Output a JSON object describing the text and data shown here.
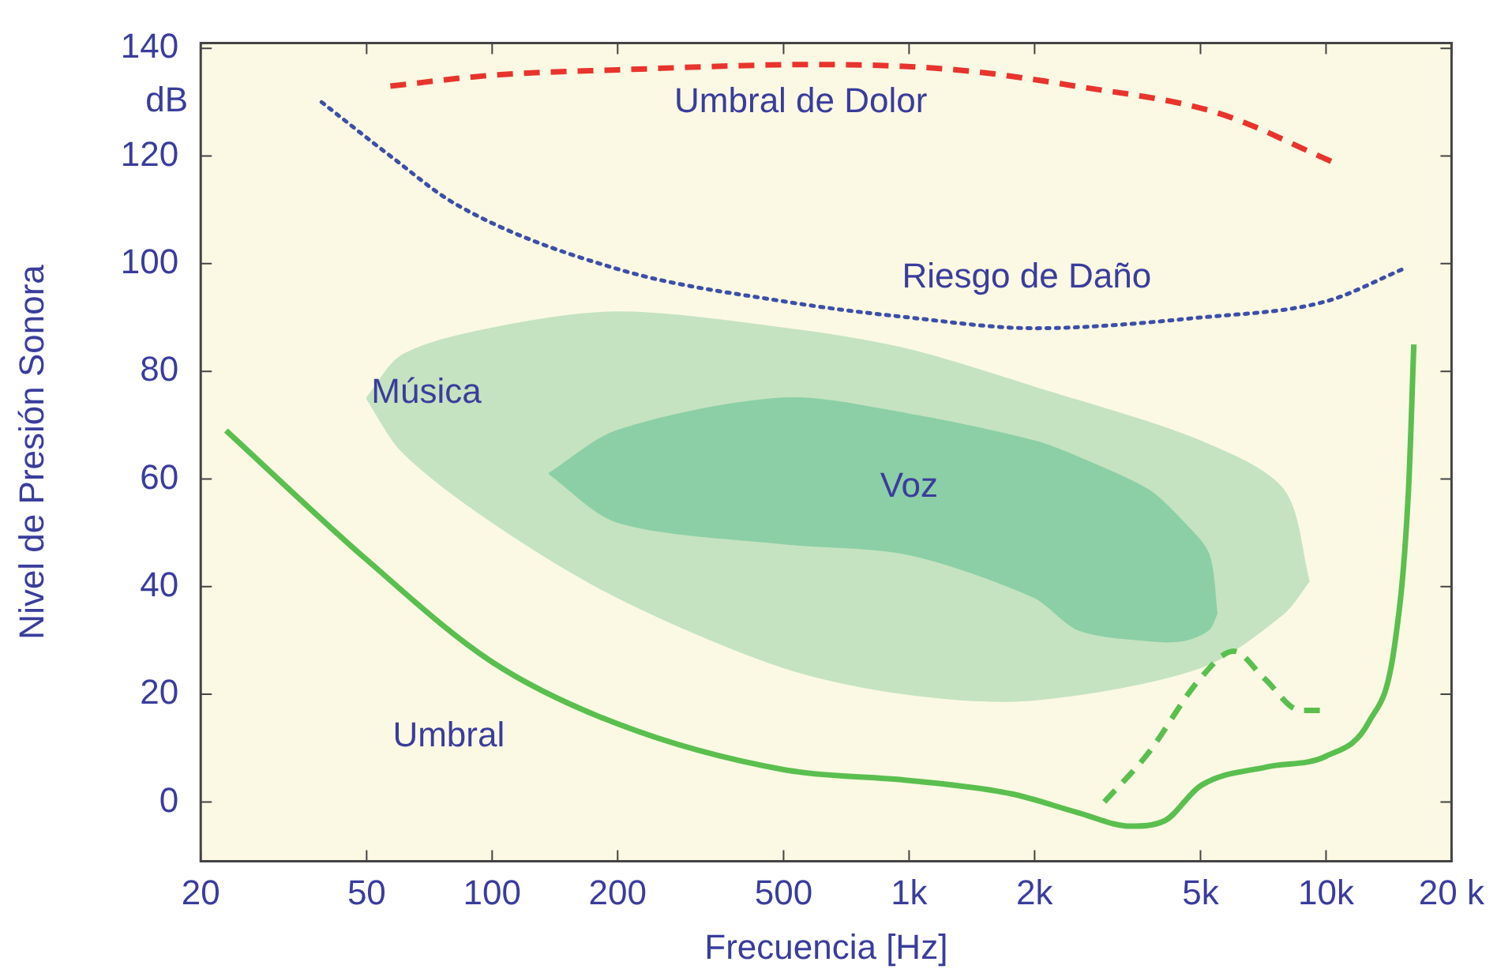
{
  "chart_data": {
    "type": "line",
    "xlabel": "Frecuencia [Hz]",
    "ylabel": "Nivel de Presión Sonora",
    "log": "x",
    "grid": false,
    "legend": false,
    "xlim": [
      20,
      20000
    ],
    "xticks": [
      20,
      50,
      100,
      200,
      500,
      {
        "value": 1000,
        "label": "1k"
      },
      {
        "value": 2000,
        "label": "2k"
      },
      {
        "value": 5000,
        "label": "5k"
      },
      {
        "value": 10000,
        "label": "10k"
      },
      {
        "value": 20000,
        "label": "20 k"
      }
    ],
    "ylim": [
      -11,
      141
    ],
    "yticks": [
      0,
      20,
      40,
      60,
      80,
      100,
      120,
      140
    ],
    "series": [
      {
        "color": "#c5e3c0",
        "x": [
          50,
          61,
          100,
          200,
          500,
          1000,
          2000,
          5000,
          7900,
          9100
        ],
        "values": [
          null,
          null,
          null,
          null,
          null,
          null,
          null,
          null,
          null,
          null
        ],
        "upper": [
          75,
          83,
          88,
          91,
          88,
          84,
          77,
          67,
          58,
          41
        ],
        "lower": [
          75,
          65,
          52,
          38,
          25,
          20,
          19,
          25,
          35,
          41
        ]
      },
      {
        "color": "#8ccfa6",
        "x": [
          137,
          200,
          500,
          1000,
          2000,
          2546,
          3740,
          4540,
          5230,
          5470
        ],
        "values": [
          null,
          null,
          null,
          null,
          null,
          null,
          null,
          null,
          null,
          null
        ],
        "upper": [
          61,
          69,
          75,
          72,
          67,
          64,
          58,
          52,
          46,
          35
        ],
        "lower": [
          61,
          52,
          48,
          46,
          38,
          32,
          30,
          30,
          32,
          35
        ]
      },
      {
        "name": "Umbral de Dolor",
        "color": "#e8342c",
        "line_style": "dashed",
        "x": [
          57,
          100,
          200,
          600,
          1300,
          2500,
          5500,
          10300
        ],
        "values": [
          133,
          135,
          136,
          137,
          136,
          133,
          128,
          119
        ]
      },
      {
        "name": "Riesgo de Daño",
        "color": "#3c4fa8",
        "line_style": "dotted",
        "x": [
          39,
          57,
          82,
          200,
          500,
          1000,
          2000,
          5000,
          10000,
          15300
        ],
        "values": [
          130,
          120,
          111,
          99,
          93,
          90,
          88,
          90,
          93,
          99
        ]
      },
      {
        "name": "Umbral",
        "color": "#5abf4f",
        "line_style": "solid",
        "x": [
          23,
          50,
          100,
          200,
          500,
          1000,
          1765,
          2546,
          3400,
          4100,
          5000,
          7200,
          10000,
          12700,
          14600,
          15770,
          16240
        ],
        "values": [
          69,
          45,
          26,
          14.5,
          6,
          4,
          1.5,
          -2,
          -4.5,
          -3.5,
          3,
          6.5,
          8.5,
          15,
          29,
          58,
          85
        ]
      },
      {
        "color": "#5abf4f",
        "line_style": "dashed",
        "x": [
          2940,
          3740,
          5000,
          6010,
          7100,
          8700,
          10000
        ],
        "values": [
          0,
          9,
          23,
          28,
          23,
          17,
          17
        ]
      }
    ],
    "annotations": [
      "dB",
      "Música",
      "Voz"
    ]
  }
}
